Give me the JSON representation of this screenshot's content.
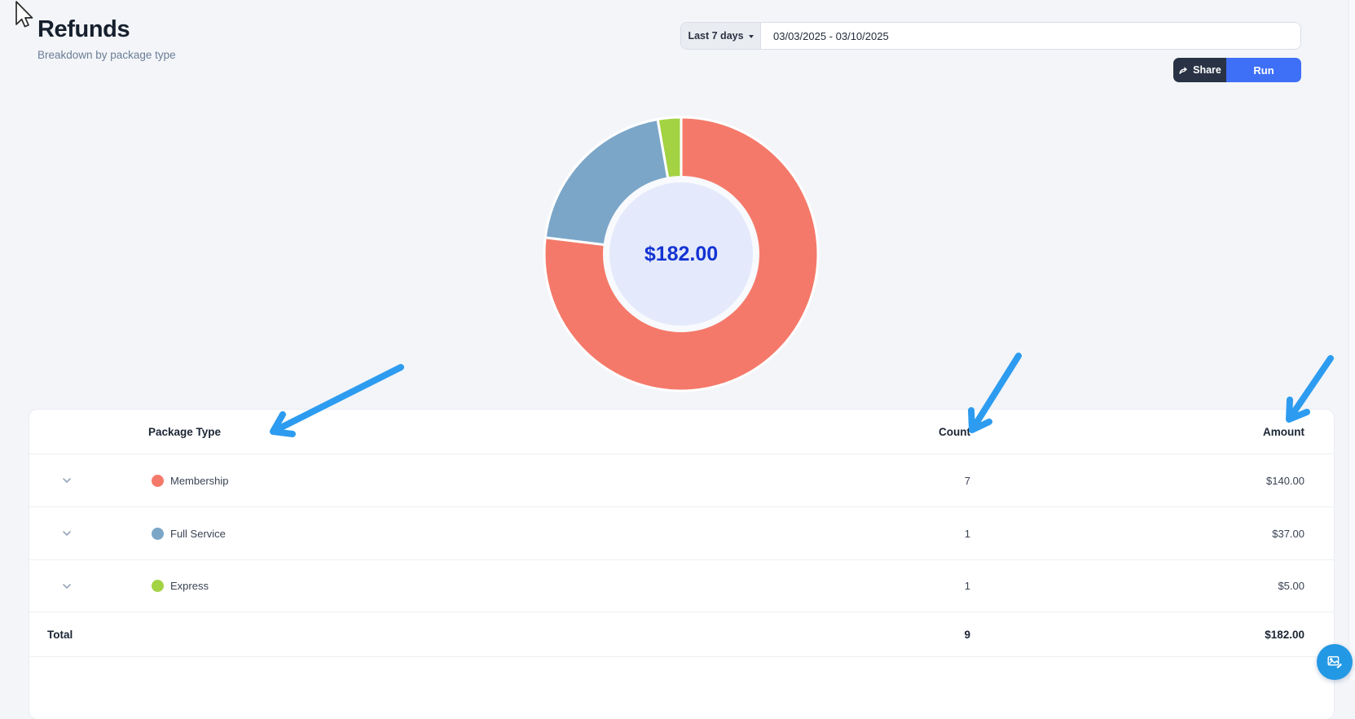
{
  "page": {
    "title": "Refunds",
    "subtitle": "Breakdown by package type"
  },
  "controls": {
    "range_preset": "Last 7 days",
    "date_range_value": "03/03/2025 - 03/10/2025",
    "share_label": "Share",
    "run_label": "Run"
  },
  "chart_data": {
    "type": "pie",
    "title": "Refunds breakdown by package type",
    "categories": [
      "Membership",
      "Full Service",
      "Express"
    ],
    "values": [
      140.0,
      37.0,
      5.0
    ],
    "counts": [
      7,
      1,
      1
    ],
    "total": 182.0,
    "center_label": "$182.00",
    "colors": [
      "#f5796a",
      "#7ba6c8",
      "#a3d243"
    ],
    "donut_hole_color": "#f8fafd",
    "donut_inner_circle_color": "#e4eafb",
    "legend_position": "none",
    "start_angle_deg": 0,
    "direction": "clockwise"
  },
  "table": {
    "headers": {
      "package": "Package Type",
      "count": "Count",
      "amount": "Amount"
    },
    "rows": [
      {
        "package": "Membership",
        "count": "7",
        "amount": "$140.00",
        "color": "#f5796a"
      },
      {
        "package": "Full Service",
        "count": "1",
        "amount": "$37.00",
        "color": "#7ba6c8"
      },
      {
        "package": "Express",
        "count": "1",
        "amount": "$5.00",
        "color": "#a3d243"
      }
    ],
    "total": {
      "label": "Total",
      "count": "9",
      "amount": "$182.00"
    }
  },
  "colors": {
    "annotation_arrow": "#2d9cf0",
    "run_button": "#3e6ff7",
    "share_button": "#293345",
    "fab_button": "#2398e4",
    "center_text": "#1433d3"
  }
}
